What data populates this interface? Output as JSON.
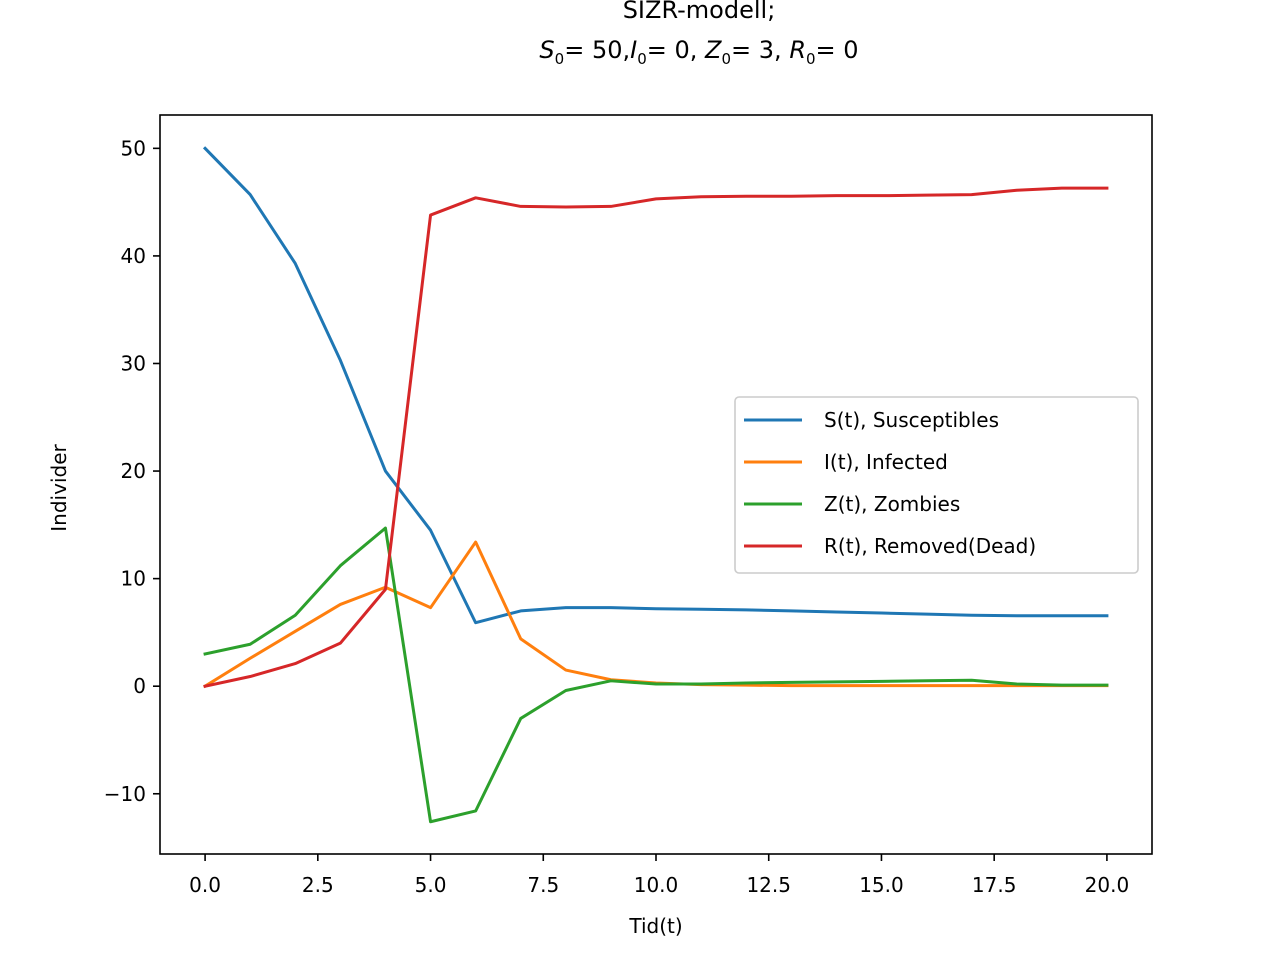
{
  "chart_data": {
    "type": "line",
    "title_line1": "SIZR-modell;",
    "title_line2": {
      "S": {
        "symbol": "S",
        "sub": "0",
        "value": "= 50"
      },
      "I": {
        "symbol": "I",
        "sub": "0",
        "value": "= 0"
      },
      "Z": {
        "symbol": "Z",
        "sub": "0",
        "value": "= 3"
      },
      "R": {
        "symbol": "R",
        "sub": "0",
        "value": "= 0"
      }
    },
    "xlabel": "Tid(t)",
    "ylabel": "Individer",
    "xlim": [
      -1,
      21
    ],
    "ylim": [
      -15.6,
      53.1
    ],
    "xticks": [
      0,
      2.5,
      5,
      7.5,
      10,
      12.5,
      15,
      17.5,
      20
    ],
    "xtick_labels": [
      "0.0",
      "2.5",
      "5.0",
      "7.5",
      "10.0",
      "12.5",
      "15.0",
      "17.5",
      "20.0"
    ],
    "yticks": [
      -10,
      0,
      10,
      20,
      30,
      40,
      50
    ],
    "ytick_labels": [
      "−10",
      "0",
      "10",
      "20",
      "30",
      "40",
      "50"
    ],
    "grid": false,
    "legend_position": "center-right",
    "x": [
      0,
      1,
      2,
      3,
      4,
      5,
      6,
      7,
      8,
      9,
      10,
      11,
      12,
      13,
      14,
      15,
      16,
      17,
      18,
      19,
      20
    ],
    "series": [
      {
        "name": "S(t), Susceptibles",
        "color": "#1f77b4",
        "values": [
          50,
          45.7,
          39.3,
          30.3,
          20.0,
          14.5,
          5.9,
          7.0,
          7.3,
          7.3,
          7.2,
          7.15,
          7.1,
          7.0,
          6.9,
          6.8,
          6.7,
          6.6,
          6.55,
          6.55,
          6.55
        ]
      },
      {
        "name": "I(t), Infected",
        "color": "#ff7f0e",
        "values": [
          0,
          2.6,
          5.1,
          7.6,
          9.2,
          7.3,
          13.4,
          4.4,
          1.5,
          0.6,
          0.3,
          0.15,
          0.1,
          0.05,
          0.05,
          0.05,
          0.05,
          0.05,
          0.05,
          0.05,
          0.05
        ]
      },
      {
        "name": "Z(t), Zombies",
        "color": "#2ca02c",
        "values": [
          3,
          3.9,
          6.6,
          11.2,
          14.7,
          -12.6,
          -11.6,
          -3.0,
          -0.4,
          0.5,
          0.2,
          0.2,
          0.3,
          0.35,
          0.4,
          0.45,
          0.5,
          0.55,
          0.2,
          0.1,
          0.1
        ]
      },
      {
        "name": " R(t), Removed(Dead)",
        "color": "#d62728",
        "values": [
          0,
          0.9,
          2.1,
          4.0,
          9.0,
          43.8,
          45.4,
          44.6,
          44.55,
          44.6,
          45.3,
          45.5,
          45.55,
          45.55,
          45.6,
          45.6,
          45.65,
          45.7,
          46.1,
          46.3,
          46.3
        ]
      }
    ]
  }
}
